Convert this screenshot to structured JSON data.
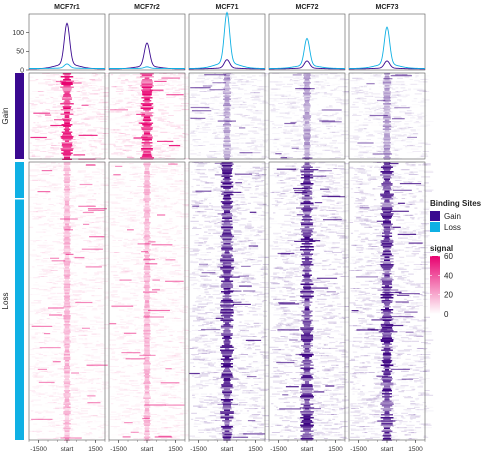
{
  "chart_data": {
    "type": "heatmap",
    "columns": [
      "MCF7r1",
      "MCF7r2",
      "MCF71",
      "MCF72",
      "MCF73"
    ],
    "column_color": [
      "#e8006f",
      "#e8006f",
      "#3a0080",
      "#3a0080",
      "#3a0080"
    ],
    "row_groups": [
      {
        "name": "Gain",
        "color": "#3a0990",
        "rows": 600
      },
      {
        "name": "Loss",
        "color": "#0fb0e4",
        "rows": 1900
      }
    ],
    "x_ticks": [
      "-1500",
      "start",
      "1500"
    ],
    "x_tick_values": [
      -1500,
      0,
      1500
    ],
    "x_range": [
      -2000,
      2000
    ],
    "profile": {
      "ylim": [
        0,
        150
      ],
      "y_ticks": [
        0,
        50,
        100
      ],
      "series": [
        {
          "name": "Gain",
          "color": "#3a0990",
          "peaks": [
            112,
            65,
            25,
            22,
            22
          ],
          "base": 3
        },
        {
          "name": "Loss",
          "color": "#0fb0e4",
          "peaks": [
            15,
            8,
            138,
            76,
            103
          ],
          "base": 4
        }
      ]
    },
    "legend_binding": {
      "title": "Binding Sites",
      "items": [
        {
          "label": "Gain",
          "color": "#3a0990"
        },
        {
          "label": "Loss",
          "color": "#0fb0e4"
        }
      ]
    },
    "legend_signal": {
      "title": "signal",
      "ticks": [
        60,
        40,
        20,
        0
      ],
      "range": [
        0,
        60
      ],
      "color_high": "#e8006f",
      "color_low": "#ffffff"
    }
  }
}
